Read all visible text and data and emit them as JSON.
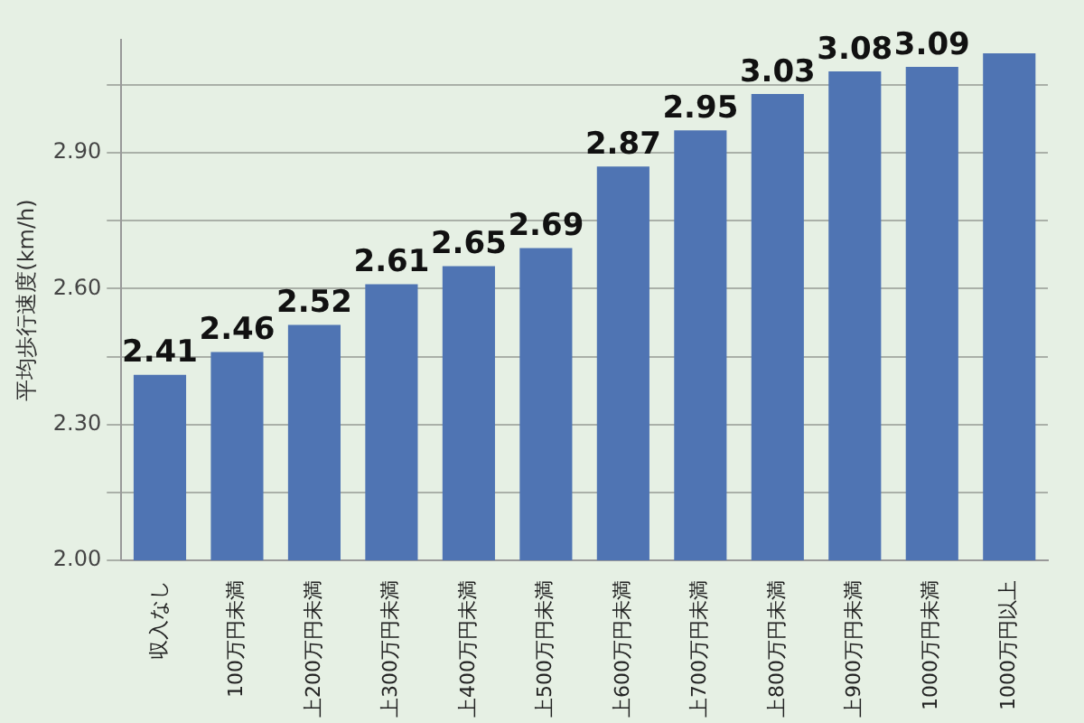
{
  "chart_data": {
    "type": "bar",
    "ylabel": "平均歩行速度(km/h)",
    "categories": [
      "収入なし",
      "100万円未満",
      "上200万円未満",
      "上300万円未満",
      "上400万円未満",
      "上500万円未満",
      "上600万円未満",
      "上700万円未満",
      "上800万円未満",
      "上900万円未満",
      "1000万円未満",
      "1000万円以上"
    ],
    "values": [
      2.41,
      2.46,
      2.52,
      2.61,
      2.65,
      2.69,
      2.87,
      2.95,
      3.03,
      3.08,
      3.09,
      3.12
    ],
    "value_labels": [
      "2.41",
      "2.46",
      "2.52",
      "2.61",
      "2.65",
      "2.69",
      "2.87",
      "2.95",
      "3.03",
      "3.08",
      "3.09",
      null
    ],
    "color": "#4f74b3",
    "ylim": [
      2.0,
      3.15
    ],
    "yticks": [
      {
        "value": 2.0,
        "label": "2.00"
      },
      {
        "value": 2.15,
        "label": null
      },
      {
        "value": 2.3,
        "label": "2.30"
      },
      {
        "value": 2.45,
        "label": null
      },
      {
        "value": 2.6,
        "label": "2.60"
      },
      {
        "value": 2.75,
        "label": null
      },
      {
        "value": 2.9,
        "label": "2.90"
      },
      {
        "value": 3.05,
        "label": null
      }
    ],
    "grid": "y"
  }
}
